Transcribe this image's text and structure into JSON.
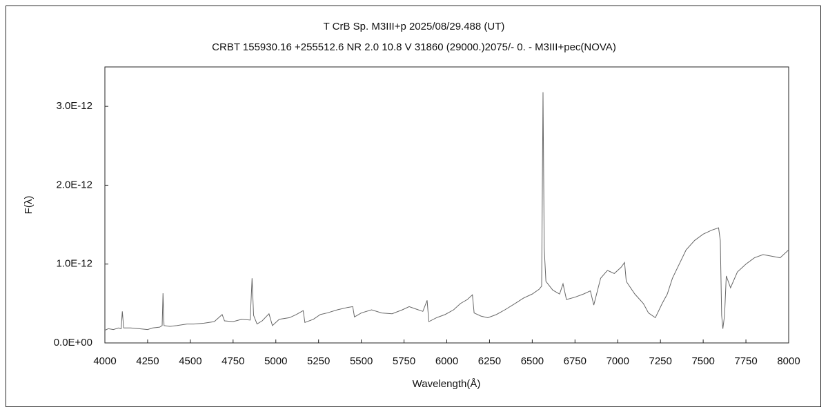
{
  "chart_data": {
    "type": "line",
    "title": "T CrB    Sp. M3III+p    2025/08/29.488 (UT)",
    "subtitle": "CRBT 155930.16 +255512.6  NR 2.0 10.8 V 31860 (29000.)2075/-  0. - M3III+pec(NOVA)",
    "x_label": "Wavelength(Å)",
    "y_label": "F(λ)",
    "color": "#666666",
    "xlim": [
      4000,
      8000
    ],
    "xticks": [
      4000,
      4250,
      4500,
      4750,
      5000,
      5250,
      5500,
      5750,
      6000,
      6250,
      6500,
      6750,
      7000,
      7250,
      7500,
      7750,
      8000
    ],
    "ylim": [
      0,
      3.5e-12
    ],
    "yticks": [
      {
        "value": 0,
        "label": "0.0E+00"
      },
      {
        "value": 1e-12,
        "label": "1.0E-12"
      },
      {
        "value": 2e-12,
        "label": "2.0E-12"
      },
      {
        "value": 3e-12,
        "label": "3.0E-12"
      }
    ],
    "x": [
      4000,
      4020,
      4050,
      4080,
      4095,
      4102,
      4110,
      4150,
      4200,
      4250,
      4280,
      4320,
      4335,
      4340,
      4346,
      4380,
      4420,
      4480,
      4520,
      4580,
      4640,
      4686,
      4700,
      4750,
      4800,
      4850,
      4861,
      4870,
      4890,
      4920,
      4960,
      4980,
      5020,
      5080,
      5120,
      5160,
      5170,
      5220,
      5260,
      5300,
      5360,
      5420,
      5450,
      5460,
      5500,
      5560,
      5620,
      5680,
      5740,
      5780,
      5820,
      5860,
      5885,
      5895,
      5940,
      5990,
      6040,
      6080,
      6120,
      6150,
      6160,
      6200,
      6240,
      6290,
      6340,
      6400,
      6450,
      6500,
      6540,
      6555,
      6563,
      6570,
      6580,
      6620,
      6660,
      6680,
      6700,
      6750,
      6800,
      6840,
      6860,
      6900,
      6940,
      6980,
      7020,
      7040,
      7050,
      7100,
      7150,
      7180,
      7220,
      7260,
      7290,
      7320,
      7360,
      7400,
      7450,
      7500,
      7550,
      7590,
      7600,
      7608,
      7615,
      7625,
      7635,
      7660,
      7700,
      7750,
      7800,
      7850,
      7900,
      7950,
      8000
    ],
    "values": [
      1.6e-13,
      1.8e-13,
      1.7e-13,
      1.9e-13,
      1.8e-13,
      4e-13,
      1.9e-13,
      1.9e-13,
      1.8e-13,
      1.7e-13,
      1.9e-13,
      2e-13,
      2.2e-13,
      6.3e-13,
      2.2e-13,
      2.1e-13,
      2.2e-13,
      2.4e-13,
      2.4e-13,
      2.5e-13,
      2.7e-13,
      3.6e-13,
      2.8e-13,
      2.7e-13,
      3e-13,
      2.9e-13,
      8.2e-13,
      3.5e-13,
      2.4e-13,
      2.8e-13,
      3.7e-13,
      2.2e-13,
      3e-13,
      3.2e-13,
      3.6e-13,
      4.1e-13,
      2.6e-13,
      3e-13,
      3.6e-13,
      3.8e-13,
      4.2e-13,
      4.5e-13,
      4.6e-13,
      3.3e-13,
      3.8e-13,
      4.2e-13,
      3.8e-13,
      3.7e-13,
      4.2e-13,
      4.6e-13,
      4.3e-13,
      4e-13,
      5.4e-13,
      2.7e-13,
      3.2e-13,
      3.6e-13,
      4.2e-13,
      5e-13,
      5.5e-13,
      6.1e-13,
      3.8e-13,
      3.4e-13,
      3.2e-13,
      3.6e-13,
      4.2e-13,
      5e-13,
      5.7e-13,
      6.2e-13,
      6.8e-13,
      7.2e-13,
      3.18e-12,
      1.2e-12,
      7.8e-13,
      6.7e-13,
      6.2e-13,
      7.5e-13,
      5.5e-13,
      5.8e-13,
      6.2e-13,
      6.6e-13,
      4.8e-13,
      8.2e-13,
      9.2e-13,
      8.8e-13,
      9.6e-13,
      1.02e-12,
      7.8e-13,
      6.2e-13,
      5e-13,
      3.8e-13,
      3.2e-13,
      5e-13,
      6.2e-13,
      8.2e-13,
      1e-12,
      1.18e-12,
      1.3e-12,
      1.38e-12,
      1.43e-12,
      1.46e-12,
      1.3e-12,
      3.5e-13,
      1.8e-13,
      3.5e-13,
      8.5e-13,
      7e-13,
      9e-13,
      1e-12,
      1.08e-12,
      1.12e-12,
      1.1e-12,
      1.08e-12,
      1.18e-12
    ]
  }
}
